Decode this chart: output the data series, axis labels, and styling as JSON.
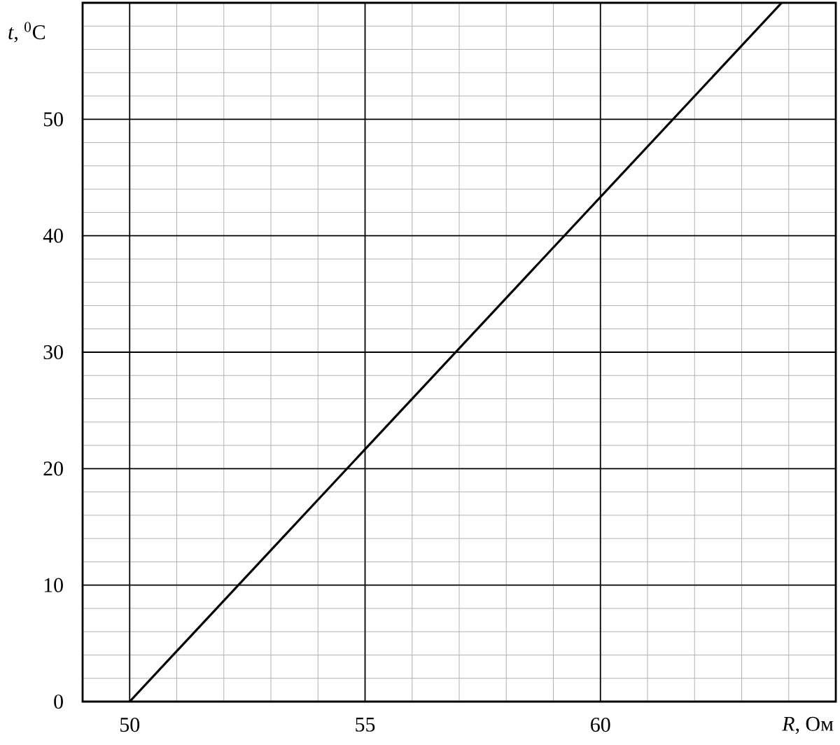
{
  "chart_data": {
    "type": "line",
    "xlabel": "*R*, Ом",
    "ylabel": "*t*, $^{0}$C",
    "x": [
      50,
      63.85
    ],
    "series": [
      {
        "color": "#000000",
        "values": [
          0,
          60
        ]
      }
    ],
    "xlim": [
      49,
      65
    ],
    "ylim": [
      0,
      60
    ],
    "xticks": [
      50,
      {
        "value": 51,
        "label": null
      },
      {
        "value": 52,
        "label": null
      },
      {
        "value": 53,
        "label": null
      },
      {
        "value": 54,
        "label": null
      },
      55,
      {
        "value": 56,
        "label": null
      },
      {
        "value": 57,
        "label": null
      },
      {
        "value": 58,
        "label": null
      },
      {
        "value": 59,
        "label": null
      },
      60,
      {
        "value": 61,
        "label": null
      },
      {
        "value": 62,
        "label": null
      },
      {
        "value": 63,
        "label": null
      },
      {
        "value": 64,
        "label": null
      }
    ],
    "yticks": [
      0,
      {
        "value": 2,
        "label": null
      },
      {
        "value": 4,
        "label": null
      },
      {
        "value": 6,
        "label": null
      },
      {
        "value": 8,
        "label": null
      },
      10,
      {
        "value": 12,
        "label": null
      },
      {
        "value": 14,
        "label": null
      },
      {
        "value": 16,
        "label": null
      },
      {
        "value": 18,
        "label": null
      },
      20,
      {
        "value": 22,
        "label": null
      },
      {
        "value": 24,
        "label": null
      },
      {
        "value": 26,
        "label": null
      },
      {
        "value": 28,
        "label": null
      },
      30,
      {
        "value": 32,
        "label": null
      },
      {
        "value": 34,
        "label": null
      },
      {
        "value": 36,
        "label": null
      },
      {
        "value": 38,
        "label": null
      },
      40,
      {
        "value": 42,
        "label": null
      },
      {
        "value": 44,
        "label": null
      },
      {
        "value": 46,
        "label": null
      },
      {
        "value": 48,
        "label": null
      },
      50,
      {
        "value": 52,
        "label": null
      },
      {
        "value": 54,
        "label": null
      },
      {
        "value": 56,
        "label": null
      },
      {
        "value": 58,
        "label": null
      }
    ],
    "grid": true,
    "marker": "none",
    "line_style": "solid"
  }
}
